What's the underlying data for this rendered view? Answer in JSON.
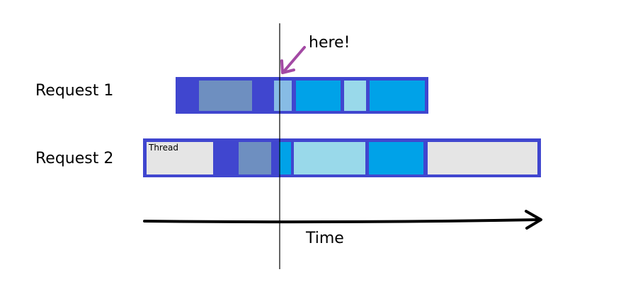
{
  "diagram": {
    "requests": [
      {
        "label": "Request 1"
      },
      {
        "label": "Request 2",
        "segment_text": "Thread"
      }
    ],
    "annotation": "here!",
    "axis_label": "Time",
    "colors": {
      "frame": "#4046CF",
      "dark_segment": "#6E8FC0",
      "bright_segment": "#00A2E8",
      "light_segment": "#99D9EA",
      "idle_segment": "#E5E5E5",
      "arrow_annotation": "#A349A4",
      "axis": "#000000"
    }
  }
}
